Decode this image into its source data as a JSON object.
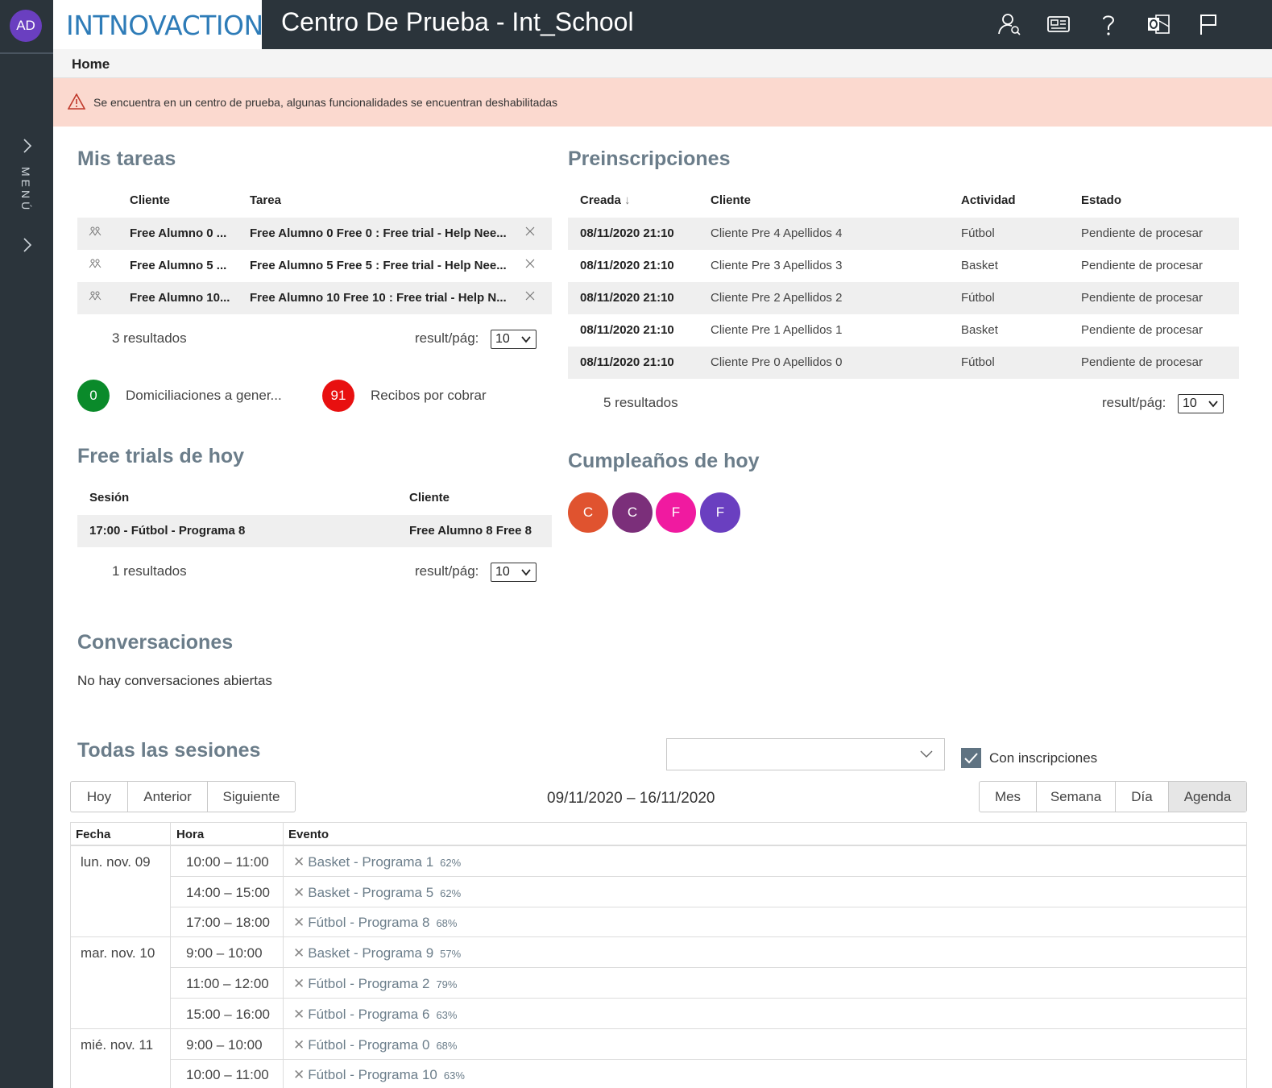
{
  "user": {
    "initials": "AD"
  },
  "rail": {
    "menu_label": "MENÚ"
  },
  "logo": {
    "text_a": "INTNOV",
    "text_b": "ACTION"
  },
  "header": {
    "title": "Centro De Prueba - Int_School"
  },
  "breadcrumb": {
    "label": "Home"
  },
  "alert": {
    "text": "Se encuentra en un centro de prueba, algunas funcionalidades se encuentran deshabilitadas"
  },
  "tasks": {
    "title": "Mis tareas",
    "col_cliente": "Cliente",
    "col_tarea": "Tarea",
    "rows": [
      {
        "cliente": "Free Alumno 0 ...",
        "tarea": "Free Alumno 0 Free 0 : Free trial - Help Nee..."
      },
      {
        "cliente": "Free Alumno 5 ...",
        "tarea": "Free Alumno 5 Free 5 : Free trial - Help Nee..."
      },
      {
        "cliente": "Free Alumno 10...",
        "tarea": "Free Alumno 10 Free 10 : Free trial - Help N..."
      }
    ],
    "count": "3 resultados",
    "per_page_label": "result/pág:",
    "per_page": "10"
  },
  "counters": {
    "domiciliaciones": {
      "value": "0",
      "label": "Domiciliaciones a gener...",
      "color": "#0a8a2a"
    },
    "recibos": {
      "value": "91",
      "label": "Recibos por cobrar",
      "color": "#e81010"
    }
  },
  "preinscripciones": {
    "title": "Preinscripciones",
    "col_creada": "Creada",
    "col_cliente": "Cliente",
    "col_actividad": "Actividad",
    "col_estado": "Estado",
    "rows": [
      {
        "creada": "08/11/2020 21:10",
        "cliente": "Cliente Pre 4 Apellidos 4",
        "actividad": "Fútbol",
        "estado": "Pendiente de procesar"
      },
      {
        "creada": "08/11/2020 21:10",
        "cliente": "Cliente Pre 3 Apellidos 3",
        "actividad": "Basket",
        "estado": "Pendiente de procesar"
      },
      {
        "creada": "08/11/2020 21:10",
        "cliente": "Cliente Pre 2 Apellidos 2",
        "actividad": "Fútbol",
        "estado": "Pendiente de procesar"
      },
      {
        "creada": "08/11/2020 21:10",
        "cliente": "Cliente Pre 1 Apellidos 1",
        "actividad": "Basket",
        "estado": "Pendiente de procesar"
      },
      {
        "creada": "08/11/2020 21:10",
        "cliente": "Cliente Pre 0 Apellidos 0",
        "actividad": "Fútbol",
        "estado": "Pendiente de procesar"
      }
    ],
    "count": "5 resultados",
    "per_page_label": "result/pág:",
    "per_page": "10"
  },
  "free_trials": {
    "title": "Free trials de hoy",
    "col_sesion": "Sesión",
    "col_cliente": "Cliente",
    "rows": [
      {
        "sesion": "17:00 - Fútbol - Programa 8",
        "cliente": "Free Alumno 8 Free 8"
      }
    ],
    "count": "1 resultados",
    "per_page_label": "result/pág:",
    "per_page": "10"
  },
  "birthdays": {
    "title": "Cumpleaños de hoy",
    "people": [
      {
        "initial": "C",
        "color": "#e0532f"
      },
      {
        "initial": "C",
        "color": "#7b2f7a"
      },
      {
        "initial": "F",
        "color": "#f01aa0"
      },
      {
        "initial": "F",
        "color": "#6a3fc0"
      }
    ]
  },
  "conversaciones": {
    "title": "Conversaciones",
    "empty": "No hay conversaciones abiertas"
  },
  "sessions": {
    "title": "Todas las sesiones",
    "filter_value": "",
    "checkbox_label": "Con inscripciones",
    "checkbox_checked": true,
    "nav": {
      "today": "Hoy",
      "prev": "Anterior",
      "next": "Siguiente"
    },
    "range": "09/11/2020 – 16/11/2020",
    "views": {
      "month": "Mes",
      "week": "Semana",
      "day": "Día",
      "agenda": "Agenda"
    },
    "active_view": "Agenda",
    "col_fecha": "Fecha",
    "col_hora": "Hora",
    "col_evento": "Evento",
    "days": [
      {
        "date": "lun. nov. 09",
        "events": [
          {
            "time": "10:00 – 11:00",
            "name": "Basket - Programa 1",
            "pct": "62%"
          },
          {
            "time": "14:00 – 15:00",
            "name": "Basket - Programa 5",
            "pct": "62%"
          },
          {
            "time": "17:00 – 18:00",
            "name": "Fútbol - Programa 8",
            "pct": "68%"
          }
        ]
      },
      {
        "date": "mar. nov. 10",
        "events": [
          {
            "time": "9:00 – 10:00",
            "name": "Basket - Programa 9",
            "pct": "57%"
          },
          {
            "time": "11:00 – 12:00",
            "name": "Fútbol - Programa 2",
            "pct": "79%"
          },
          {
            "time": "15:00 – 16:00",
            "name": "Fútbol - Programa 6",
            "pct": "63%"
          }
        ]
      },
      {
        "date": "mié. nov. 11",
        "events": [
          {
            "time": "9:00 – 10:00",
            "name": "Fútbol - Programa 0",
            "pct": "68%"
          },
          {
            "time": "10:00 – 11:00",
            "name": "Fútbol - Programa 10",
            "pct": "63%"
          }
        ]
      }
    ]
  }
}
